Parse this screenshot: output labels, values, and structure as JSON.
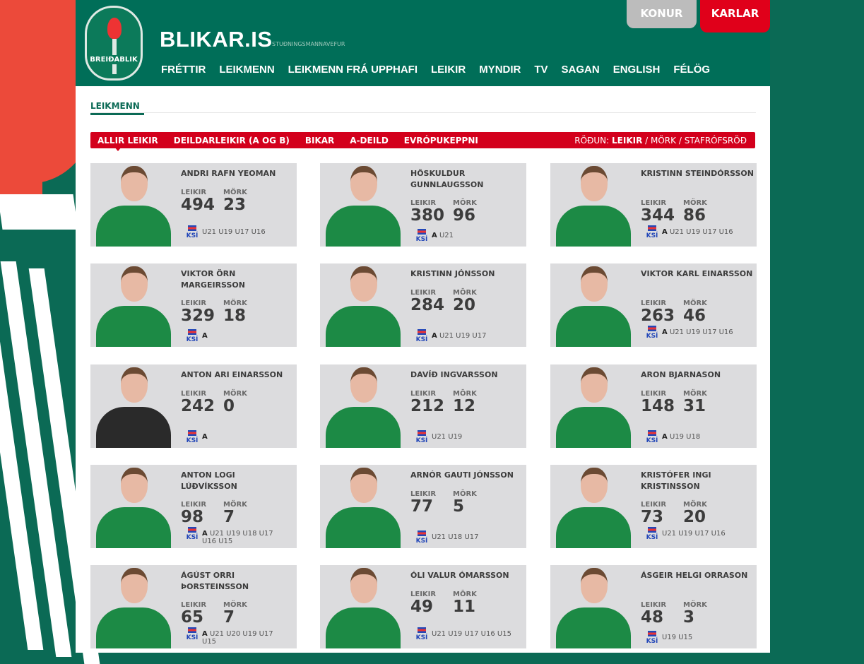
{
  "site": {
    "title": "BLIKAR.IS",
    "subtitle": "STUÐNINGSMANNAVEFUR",
    "logo_text": "BREIÐABLIK"
  },
  "gender_tabs": {
    "konur": "KONUR",
    "karlar": "KARLAR",
    "active": "KARLAR"
  },
  "nav": [
    "FRÉTTIR",
    "LEIKMENN",
    "LEIKMENN FRÁ UPPHAFI",
    "LEIKIR",
    "MYNDIR",
    "TV",
    "SAGAN",
    "ENGLISH",
    "FÉLÖG"
  ],
  "nav_active": "LEIKMENN",
  "breadcrumb": "LEIKMENN",
  "filters": [
    "ALLIR LEIKIR",
    "DEILDARLEIKIR (A OG B)",
    "BIKAR",
    "A-DEILD",
    "EVRÓPUKEPPNI"
  ],
  "filter_active": "ALLIR LEIKIR",
  "sort": {
    "label": "RÖÐUN:",
    "options": [
      "LEIKIR",
      "MÖRK",
      "STAFRÓFSRÖÐ"
    ],
    "active": "LEIKIR"
  },
  "labels": {
    "games": "LEIKIR",
    "goals": "MÖRK",
    "ksi": "KSÍ"
  },
  "colors": {
    "green": "#006e58",
    "red": "#d3001c",
    "card": "#dcdcde"
  },
  "players": [
    {
      "name": "ANDRI RAFN YEOMAN",
      "games": "494",
      "goals": "23",
      "a": "",
      "teams": "U21 U19 U17 U16"
    },
    {
      "name": "HÖSKULDUR GUNNLAUGSSON",
      "games": "380",
      "goals": "96",
      "a": "A",
      "teams": "U21"
    },
    {
      "name": "KRISTINN STEINDÓRSSON",
      "games": "344",
      "goals": "86",
      "a": "A",
      "teams": "U21 U19 U17 U16"
    },
    {
      "name": "VIKTOR ÖRN MARGEIRSSON",
      "games": "329",
      "goals": "18",
      "a": "A",
      "teams": ""
    },
    {
      "name": "KRISTINN JÓNSSON",
      "games": "284",
      "goals": "20",
      "a": "A",
      "teams": "U21 U19 U17"
    },
    {
      "name": "VIKTOR KARL EINARSSON",
      "games": "263",
      "goals": "46",
      "a": "A",
      "teams": "U21 U19 U17 U16"
    },
    {
      "name": "ANTON ARI EINARSSON",
      "games": "242",
      "goals": "0",
      "a": "A",
      "teams": "",
      "gk": true
    },
    {
      "name": "DAVÍÐ INGVARSSON",
      "games": "212",
      "goals": "12",
      "a": "",
      "teams": "U21 U19"
    },
    {
      "name": "ARON BJARNASON",
      "games": "148",
      "goals": "31",
      "a": "A",
      "teams": "U19 U18"
    },
    {
      "name": "ANTON LOGI LÚÐVÍKSSON",
      "games": "98",
      "goals": "7",
      "a": "A",
      "teams": "U21 U19 U18 U17 U16 U15"
    },
    {
      "name": "ARNÓR GAUTI JÓNSSON",
      "games": "77",
      "goals": "5",
      "a": "",
      "teams": "U21 U18 U17"
    },
    {
      "name": "KRISTÓFER INGI KRISTINSSON",
      "games": "73",
      "goals": "20",
      "a": "",
      "teams": "U21 U19 U17 U16"
    },
    {
      "name": "ÁGÚST ORRI ÞORSTEINSSON",
      "games": "65",
      "goals": "7",
      "a": "A",
      "teams": "U21 U20 U19 U17 U15"
    },
    {
      "name": "ÓLI VALUR ÓMARSSON",
      "games": "49",
      "goals": "11",
      "a": "",
      "teams": "U21 U19 U17 U16 U15"
    },
    {
      "name": "ÁSGEIR HELGI ORRASON",
      "games": "48",
      "goals": "3",
      "a": "",
      "teams": "U19 U15"
    }
  ]
}
